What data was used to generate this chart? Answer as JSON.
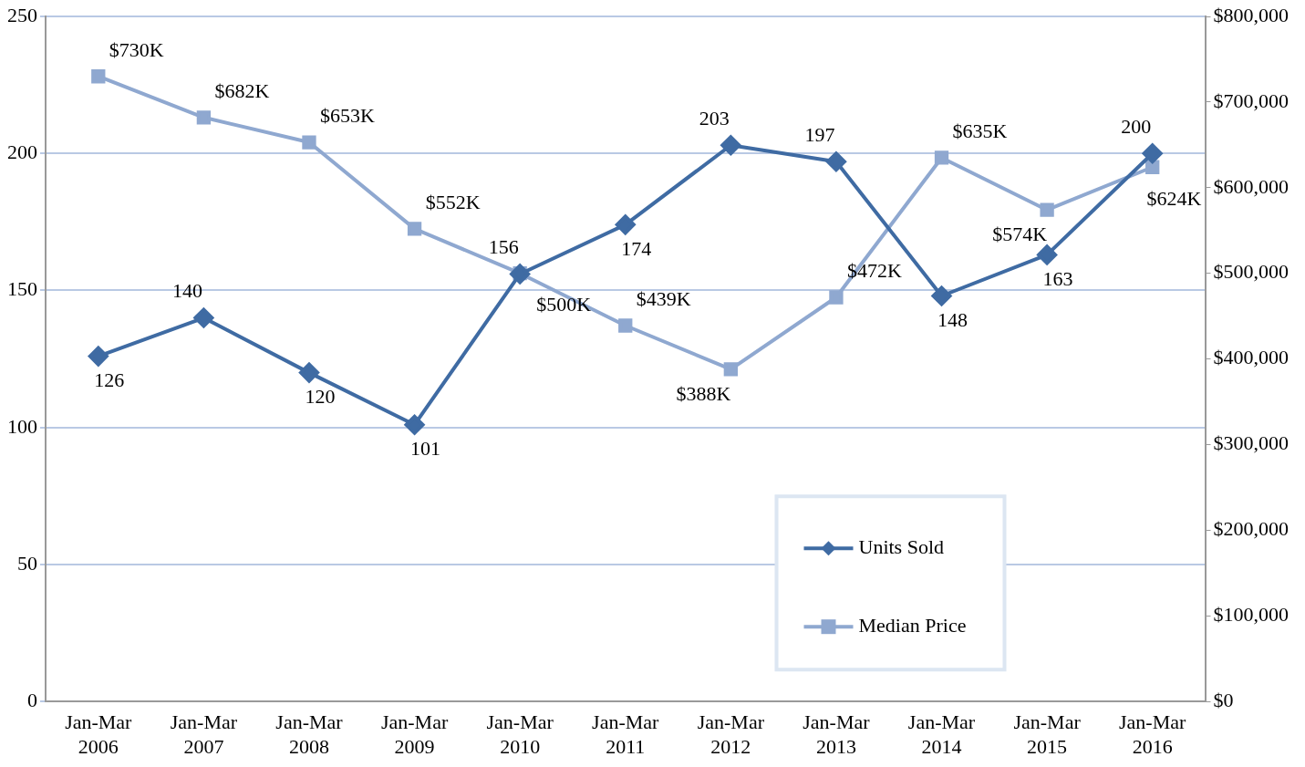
{
  "chart_data": {
    "type": "line",
    "categories": [
      "Jan-Mar 2006",
      "Jan-Mar 2007",
      "Jan-Mar 2008",
      "Jan-Mar 2009",
      "Jan-Mar 2010",
      "Jan-Mar 2011",
      "Jan-Mar 2012",
      "Jan-Mar 2013",
      "Jan-Mar 2014",
      "Jan-Mar 2015",
      "Jan-Mar 2016"
    ],
    "series": [
      {
        "name": "Units Sold",
        "color": "#3f6ba3",
        "marker": "diamond",
        "values": [
          126,
          140,
          120,
          101,
          156,
          174,
          203,
          197,
          148,
          163,
          200
        ],
        "value_labels": [
          "126",
          "140",
          "120",
          "101",
          "156",
          "174",
          "203",
          "197",
          "148",
          "163",
          "200"
        ]
      },
      {
        "name": "Median Price",
        "color": "#8fa8d0",
        "marker": "square",
        "axis": "y2",
        "values": [
          730000,
          682000,
          653000,
          552000,
          500000,
          439000,
          388000,
          472000,
          635000,
          574000,
          624000
        ],
        "value_labels": [
          "$730K",
          "$682K",
          "$653K",
          "$552K",
          "$500K",
          "$439K",
          "$388K",
          "$472K",
          "$635K",
          "$574K",
          "$624K"
        ]
      }
    ],
    "ylim": [
      0,
      250
    ],
    "yticks": [
      0,
      50,
      100,
      150,
      200,
      250
    ],
    "y2lim": [
      0,
      800000
    ],
    "y2ticks": [
      {
        "value": 0,
        "label": "$0"
      },
      {
        "value": 100000,
        "label": "$100,000"
      },
      {
        "value": 200000,
        "label": "$200,000"
      },
      {
        "value": 300000,
        "label": "$300,000"
      },
      {
        "value": 400000,
        "label": "$400,000"
      },
      {
        "value": 500000,
        "label": "$500,000"
      },
      {
        "value": 600000,
        "label": "$600,000"
      },
      {
        "value": 700000,
        "label": "$700,000"
      },
      {
        "value": 800000,
        "label": "$800,000"
      }
    ],
    "grid": "y",
    "legend": "bottom right",
    "line_style": "solid"
  }
}
